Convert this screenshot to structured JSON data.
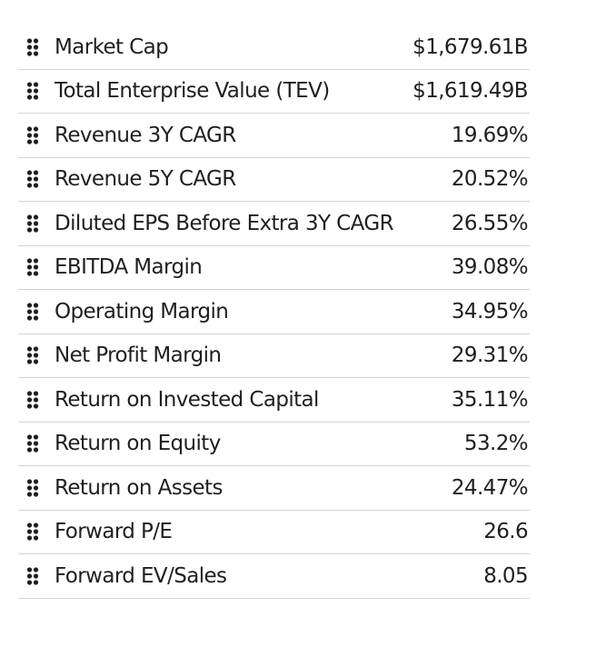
{
  "metrics": [
    {
      "label": "Market Cap",
      "value": "$1,679.61B"
    },
    {
      "label": "Total Enterprise Value (TEV)",
      "value": "$1,619.49B"
    },
    {
      "label": "Revenue 3Y CAGR",
      "value": "19.69%"
    },
    {
      "label": "Revenue 5Y CAGR",
      "value": "20.52%"
    },
    {
      "label": "Diluted EPS Before Extra 3Y CAGR",
      "value": "26.55%"
    },
    {
      "label": "EBITDA Margin",
      "value": "39.08%"
    },
    {
      "label": "Operating Margin",
      "value": "34.95%"
    },
    {
      "label": "Net Profit Margin",
      "value": "29.31%"
    },
    {
      "label": "Return on Invested Capital",
      "value": "35.11%"
    },
    {
      "label": "Return on Equity",
      "value": "53.2%"
    },
    {
      "label": "Return on Assets",
      "value": "24.47%"
    },
    {
      "label": "Forward P/E",
      "value": "26.6"
    },
    {
      "label": "Forward EV/Sales",
      "value": "8.05"
    }
  ],
  "icons": {
    "handle": "drag-handle-icon"
  },
  "colors": {
    "text": "#1f1f1f",
    "divider": "#d4d4d4",
    "background": "#ffffff"
  }
}
